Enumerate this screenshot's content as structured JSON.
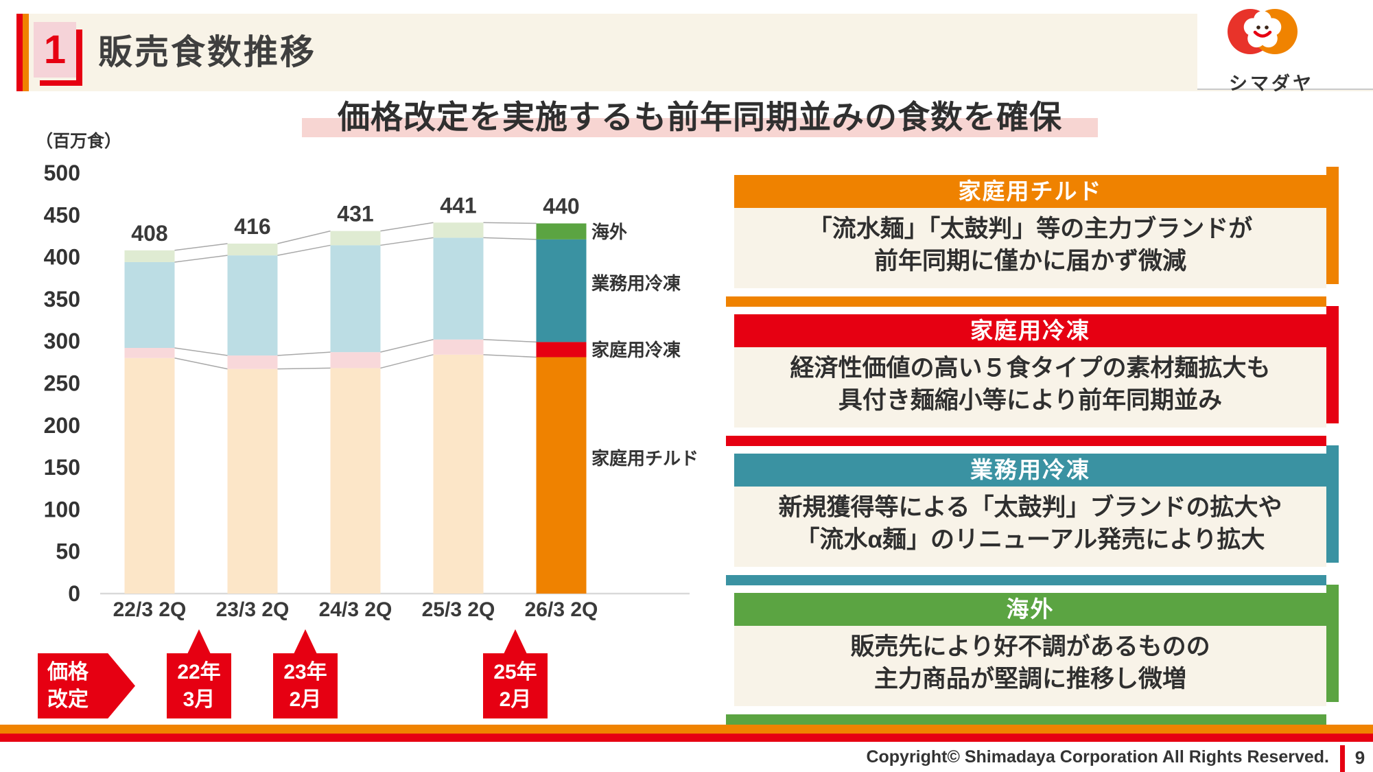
{
  "header": {
    "slide_number": "1",
    "title": "販売食数推移"
  },
  "logo": {
    "text": "シマダヤ"
  },
  "subtitle": "価格改定を実施するも前年同期並みの食数を確保",
  "chart_data": {
    "type": "bar",
    "stacked": true,
    "unit_label": "（百万食）",
    "categories": [
      "22/3 2Q",
      "23/3 2Q",
      "24/3 2Q",
      "25/3 2Q",
      "26/3 2Q"
    ],
    "series": [
      {
        "name": "家庭用チルド",
        "values": [
          280,
          267,
          268,
          284,
          281
        ]
      },
      {
        "name": "家庭用冷凍",
        "values": [
          12,
          16,
          19,
          18,
          18
        ]
      },
      {
        "name": "業務用冷凍",
        "values": [
          102,
          119,
          127,
          121,
          122
        ]
      },
      {
        "name": "海外",
        "values": [
          14,
          14,
          17,
          18,
          19
        ]
      }
    ],
    "totals": [
      408,
      416,
      431,
      441,
      440
    ],
    "ylim": [
      0,
      500
    ],
    "ytick_step": 50,
    "grid": false,
    "legend_position": "right-of-last-bar",
    "highlight_category_index": 4,
    "colors_pastel": [
      "#fce6c8",
      "#f8d8da",
      "#bcdde4",
      "#dfebd2"
    ],
    "colors_strong": [
      "#ef8200",
      "#e60012",
      "#3a92a2",
      "#5ba442"
    ]
  },
  "price_revision": {
    "label_line1": "価格",
    "label_line2": "改定",
    "events": [
      {
        "line1": "22年",
        "line2": "3月"
      },
      {
        "line1": "23年",
        "line2": "2月"
      },
      {
        "line1": "25年",
        "line2": "2月"
      }
    ]
  },
  "panels": [
    {
      "title": "家庭用チルド",
      "color": "#ef8200",
      "line1": "「流水麺」「太鼓判」等の主力ブランドが",
      "line2": "前年同期に僅かに届かず微減"
    },
    {
      "title": "家庭用冷凍",
      "color": "#e60012",
      "line1": "経済性価値の高い５食タイプの素材麺拡大も",
      "line2": "具付き麺縮小等により前年同期並み"
    },
    {
      "title": "業務用冷凍",
      "color": "#3a92a2",
      "line1": "新規獲得等による「太鼓判」ブランドの拡大や",
      "line2": "「流水α麺」のリニューアル発売により拡大"
    },
    {
      "title": "海外",
      "color": "#5ba442",
      "line1": "販売先により好不調があるものの",
      "line2": "主力商品が堅調に推移し微増"
    }
  ],
  "footer": {
    "copyright": "Copyright© Shimadaya Corporation All Rights Reserved.",
    "page_number": "9"
  }
}
